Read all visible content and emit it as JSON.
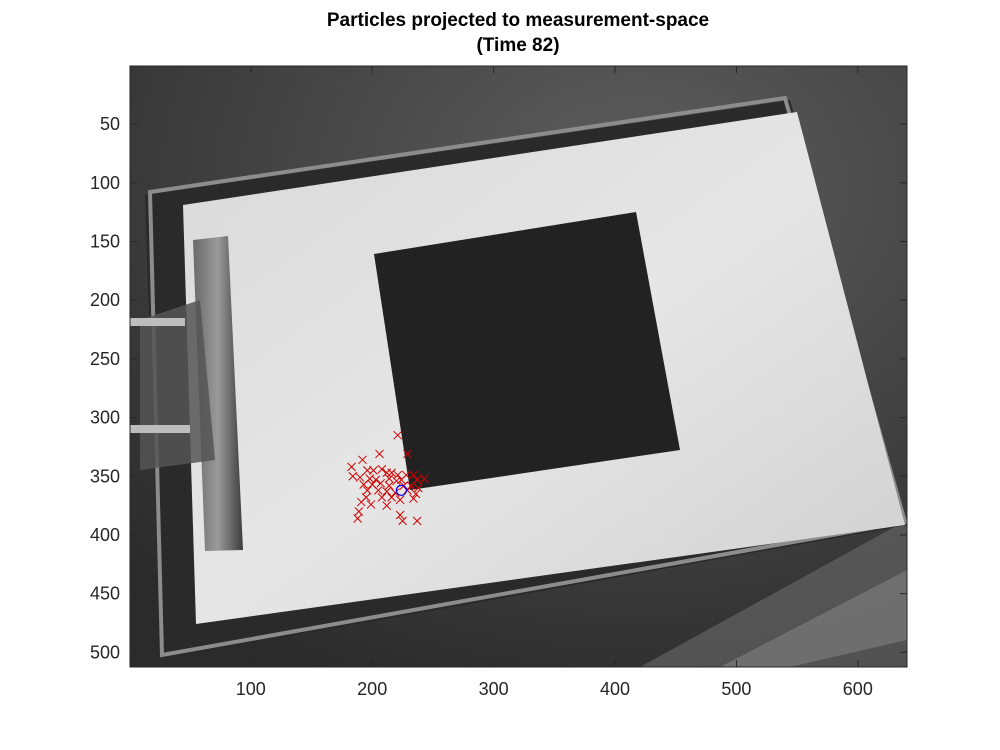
{
  "chart_data": {
    "type": "scatter",
    "title": [
      "Particles projected to measurement-space",
      "(Time 82)"
    ],
    "xlabel": "",
    "ylabel": "",
    "xlim": [
      0.5,
      640.5
    ],
    "ylim": [
      0.5,
      512.5
    ],
    "y_reversed": true,
    "xticks": [
      100,
      200,
      300,
      400,
      500,
      600
    ],
    "yticks": [
      50,
      100,
      150,
      200,
      250,
      300,
      350,
      400,
      450,
      500
    ],
    "grid": false,
    "legend": "none",
    "background": "grayscale camera image of a clipboard with a dark square on white paper",
    "series": [
      {
        "marker": "x",
        "color": "#d40000",
        "points": [
          [
            221,
            315
          ],
          [
            229,
            331
          ],
          [
            206,
            331
          ],
          [
            192,
            336
          ],
          [
            183,
            342
          ],
          [
            196,
            345
          ],
          [
            201,
            345
          ],
          [
            208,
            344
          ],
          [
            212,
            347
          ],
          [
            216,
            347
          ],
          [
            221,
            349
          ],
          [
            228,
            349
          ],
          [
            234,
            349
          ],
          [
            184,
            350
          ],
          [
            190,
            351
          ],
          [
            198,
            352
          ],
          [
            203,
            353
          ],
          [
            214,
            352
          ],
          [
            220,
            354
          ],
          [
            224,
            353
          ],
          [
            237,
            353
          ],
          [
            243,
            352
          ],
          [
            193,
            357
          ],
          [
            200,
            357
          ],
          [
            207,
            356
          ],
          [
            214,
            358
          ],
          [
            226,
            358
          ],
          [
            232,
            358
          ],
          [
            238,
            360
          ],
          [
            196,
            362
          ],
          [
            205,
            362
          ],
          [
            212,
            363
          ],
          [
            219,
            364
          ],
          [
            229,
            362
          ],
          [
            236,
            365
          ],
          [
            195,
            368
          ],
          [
            208,
            368
          ],
          [
            216,
            368
          ],
          [
            223,
            370
          ],
          [
            234,
            369
          ],
          [
            191,
            372
          ],
          [
            199,
            374
          ],
          [
            212,
            375
          ],
          [
            189,
            380
          ],
          [
            223,
            383
          ],
          [
            188,
            386
          ],
          [
            225,
            388
          ],
          [
            237,
            388
          ]
        ]
      },
      {
        "marker": "o",
        "color": "#0000ff",
        "points": [
          [
            224,
            362
          ]
        ]
      }
    ]
  }
}
